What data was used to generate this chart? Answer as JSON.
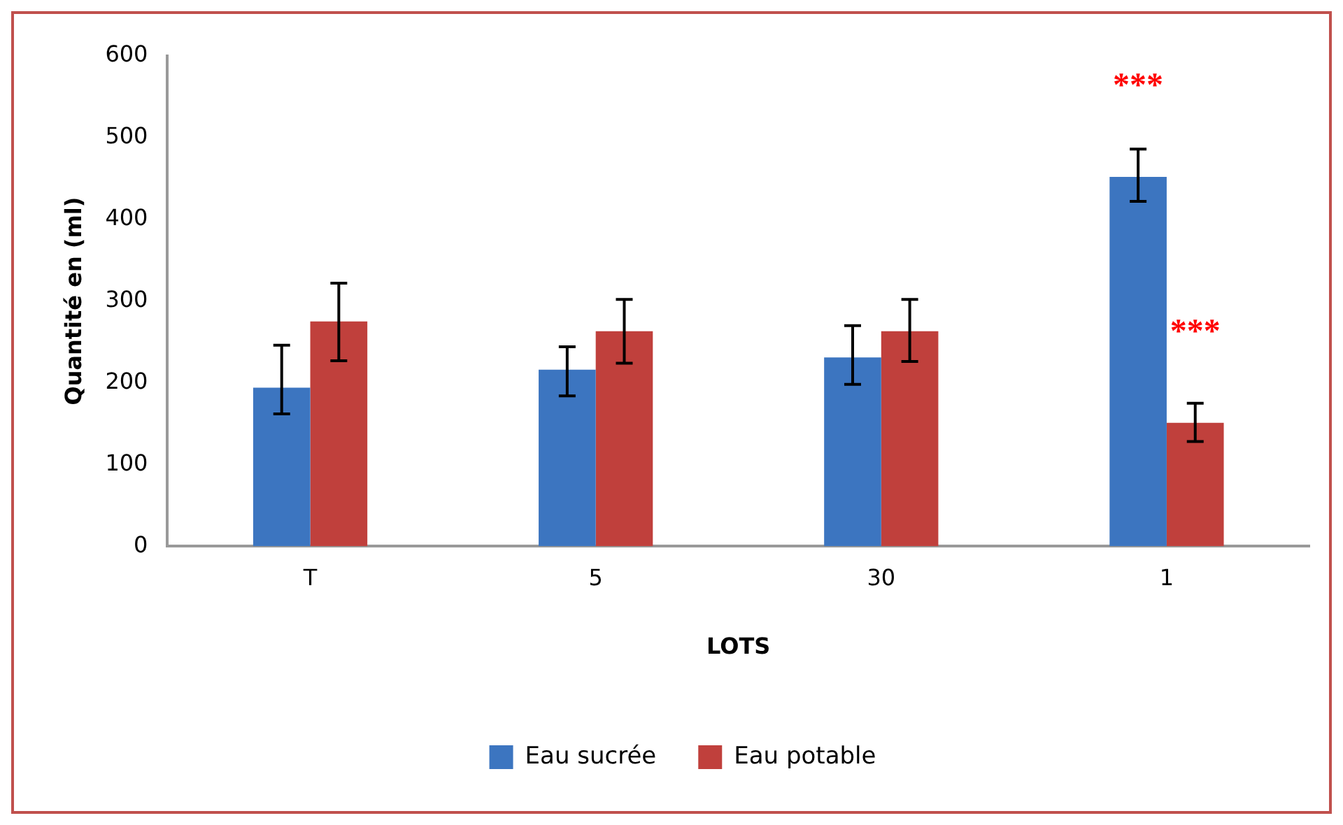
{
  "chart_data": {
    "type": "bar",
    "categories": [
      "T",
      "5",
      "30",
      "1"
    ],
    "xlabel": "LOTS",
    "ylabel": "Quantité en (ml)",
    "ylim": [
      0,
      600
    ],
    "yticks": [
      0,
      100,
      200,
      300,
      400,
      500,
      600
    ],
    "grid": false,
    "legend": "bottom",
    "series": [
      {
        "name": "Eau sucrée",
        "color": "#3c75c0",
        "values": [
          194,
          216,
          231,
          452
        ],
        "errors": [
          [
            162,
            246
          ],
          [
            184,
            244
          ],
          [
            198,
            270
          ],
          [
            422,
            486
          ]
        ]
      },
      {
        "name": "Eau potable",
        "color": "#c0403c",
        "values": [
          275,
          263,
          263,
          151
        ],
        "errors": [
          [
            227,
            322
          ],
          [
            224,
            302
          ],
          [
            226,
            302
          ],
          [
            128,
            175
          ]
        ]
      }
    ],
    "annotations": [
      {
        "text": "***",
        "x": "1",
        "y": 452
      },
      {
        "text": "***",
        "x": "1",
        "y": 151
      }
    ]
  }
}
